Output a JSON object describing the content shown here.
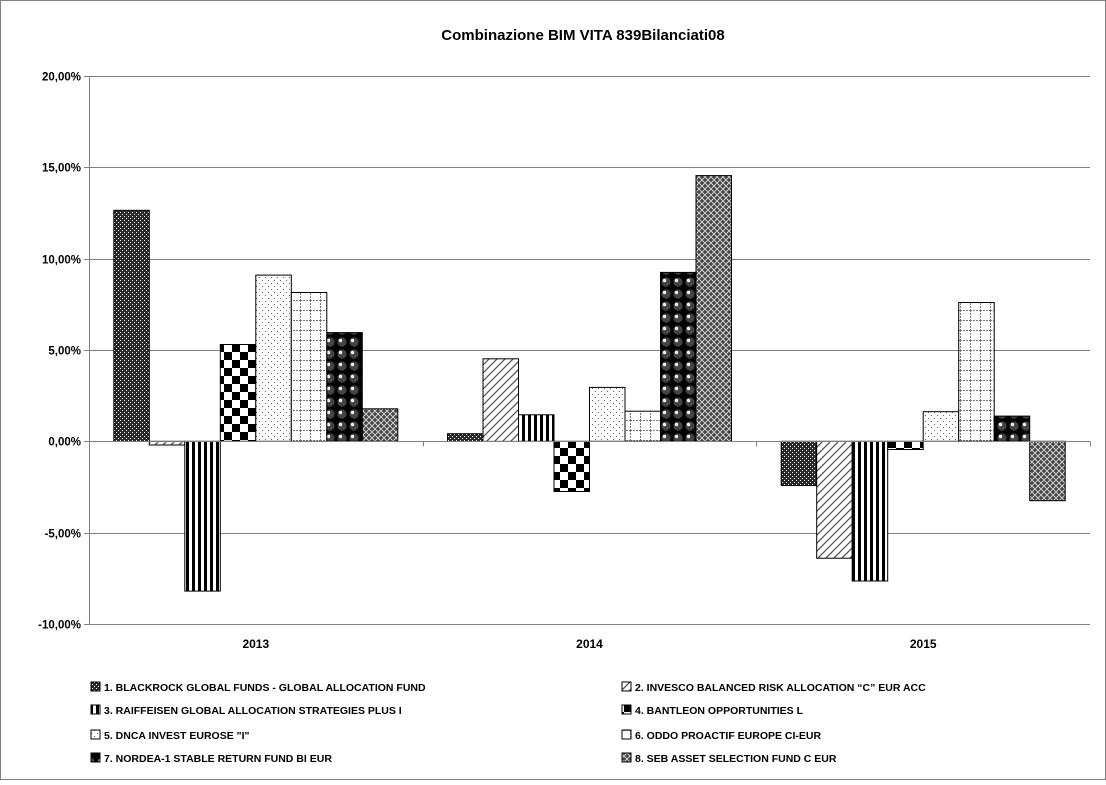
{
  "chart_data": {
    "type": "bar",
    "title": "Combinazione BIM VITA 839Bilanciati08",
    "xlabel": "",
    "ylabel": "",
    "categories": [
      "2013",
      "2014",
      "2015"
    ],
    "ylim": [
      -10,
      20
    ],
    "yticks": [
      20,
      15,
      10,
      5,
      0,
      -5,
      -10
    ],
    "ytick_labels": [
      "20,00%",
      "15,00%",
      "10,00%",
      "5,00%",
      "0,00%",
      "-5,00%",
      "-10,00%"
    ],
    "grid": true,
    "legend_position": "bottom",
    "series": [
      {
        "name": "1. BLACKROCK GLOBAL FUNDS - GLOBAL ALLOCATION FUND",
        "values": [
          12.65,
          0.42,
          -2.42
        ],
        "pattern": "pat-dense"
      },
      {
        "name": "2. INVESCO BALANCED RISK ALLOCATION “C” EUR ACC",
        "values": [
          -0.2,
          4.52,
          -6.4
        ],
        "pattern": "pat-diag"
      },
      {
        "name": "3. RAIFFEISEN GLOBAL ALLOCATION STRATEGIES PLUS I",
        "values": [
          -8.2,
          1.45,
          -7.65
        ],
        "pattern": "pat-vert"
      },
      {
        "name": "4. BANTLEON OPPORTUNITIES L",
        "values": [
          5.3,
          -2.75,
          -0.45
        ],
        "pattern": "pat-check"
      },
      {
        "name": "5. DNCA INVEST EUROSE \"I\"",
        "values": [
          9.1,
          2.95,
          1.62
        ],
        "pattern": "pat-dots"
      },
      {
        "name": "6. ODDO PROACTIF EUROPE CI-EUR",
        "values": [
          8.15,
          1.65,
          7.6
        ],
        "pattern": "pat-grid"
      },
      {
        "name": "7. NORDEA-1 STABLE RETURN FUND BI EUR",
        "values": [
          5.95,
          9.25,
          1.38
        ],
        "pattern": "pat-sphere"
      },
      {
        "name": "8. SEB ASSET SELECTION FUND C EUR",
        "values": [
          1.78,
          14.55,
          -3.25
        ],
        "pattern": "pat-cross"
      }
    ]
  }
}
